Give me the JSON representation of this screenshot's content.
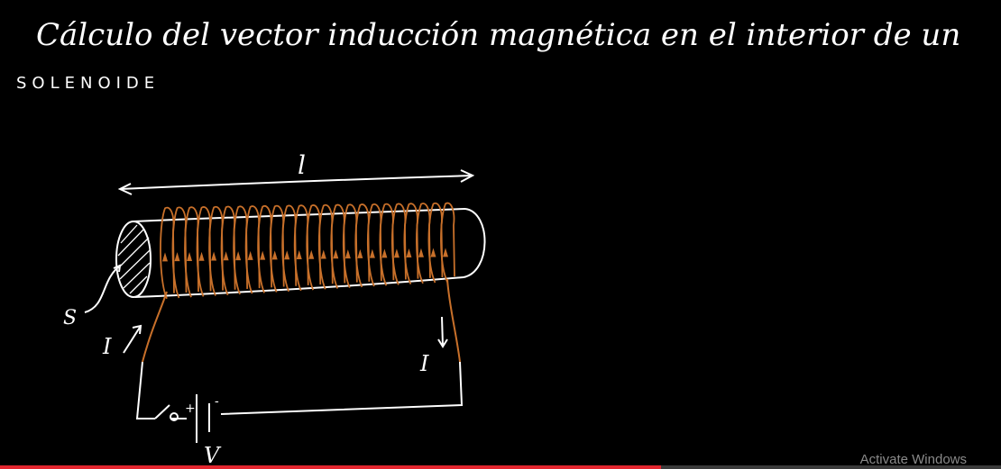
{
  "title_line1": "Cálculo del vector inducción magnética en el interior de un",
  "title_line2": "SOLENOIDE",
  "labels": {
    "length": "l",
    "surface": "S",
    "current_left": "I",
    "current_right": "I",
    "voltage": "V",
    "plus": "+",
    "minus": "-"
  },
  "watermark": "Activate Windows",
  "video_progress": 0.66,
  "colors": {
    "background": "#000000",
    "chalk": "#ffffff",
    "coil": "#c8702a",
    "progress": "#e3262f"
  }
}
